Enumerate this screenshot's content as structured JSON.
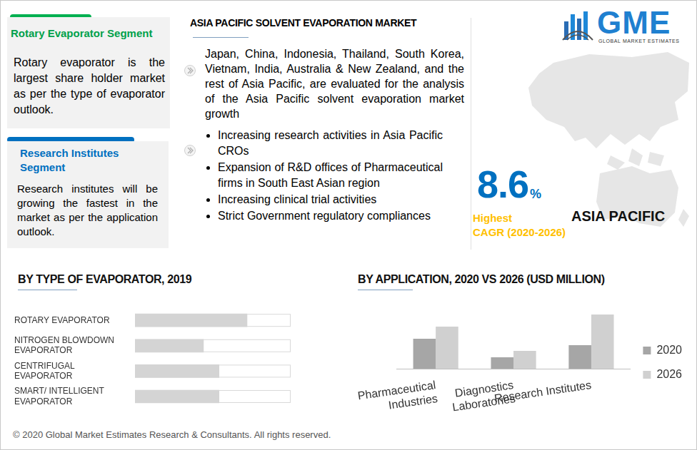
{
  "left_panel": {
    "rotary": {
      "title": "Rotary Evaporator Segment",
      "text": "Rotary evaporator is the largest share holder market as per the type of evaporator outlook."
    },
    "research": {
      "title": "Research Institutes Segment",
      "text": "Research institutes will be growing the fastest in the market as per the application outlook."
    }
  },
  "center": {
    "title": "ASIA PACIFIC SOLVENT EVAPORATION MARKET",
    "paragraph": "Japan, China, Indonesia, Thailand, South Korea, Vietnam, India, Australia & New Zealand, and the rest of Asia Pacific, are evaluated for the analysis of the Asia Pacific solvent evaporation market growth",
    "bullets": [
      "Increasing research activities in Asia Pacific CROs",
      "Expansion of R&D offices of Pharmaceutical firms in South East Asian region",
      "Increasing clinical trial activities",
      "Strict Government regulatory compliances"
    ]
  },
  "right_panel": {
    "logo": "GME",
    "logo_subtitle": "GLOBAL MARKET ESTIMATES",
    "cagr_value": "8.6",
    "cagr_unit": "%",
    "cagr_label_1": "Highest",
    "cagr_label_2": "CAGR (2020-2026)",
    "region": "ASIA PACIFIC"
  },
  "footer": "© 2020 Global Market Estimates Research & Consultants. All rights reserved.",
  "chart_data": [
    {
      "type": "bar",
      "title": "BY  TYPE OF EVAPORATOR, 2019",
      "orientation": "horizontal",
      "categories": [
        "ROTARY EVAPORATOR",
        "NITROGEN BLOWDOWN EVAPORATOR",
        "CENTRIFUGAL EVAPORATOR",
        "SMART/ INTELLIGENT EVAPORATOR"
      ],
      "values": [
        72,
        44,
        54,
        54
      ],
      "color": "#d4d4d4",
      "xlim": [
        0,
        100
      ],
      "tick_labels": "y",
      "grid": false
    },
    {
      "type": "bar",
      "title": "BY APPLICATION,  2020 VS 2026 (USD MILLION)",
      "categories": [
        "Pharmaceutical Industries",
        "Diagnostics Laboratories",
        "Research Institutes"
      ],
      "series": [
        {
          "name": "2020",
          "color": "#a6a6a6",
          "values": [
            42,
            16,
            33
          ]
        },
        {
          "name": "2026",
          "color": "#d0d0d0",
          "values": [
            59,
            25,
            76
          ]
        }
      ],
      "ylim": [
        0,
        80
      ],
      "tick_labels": "x",
      "grid": false,
      "legend": "right"
    }
  ]
}
